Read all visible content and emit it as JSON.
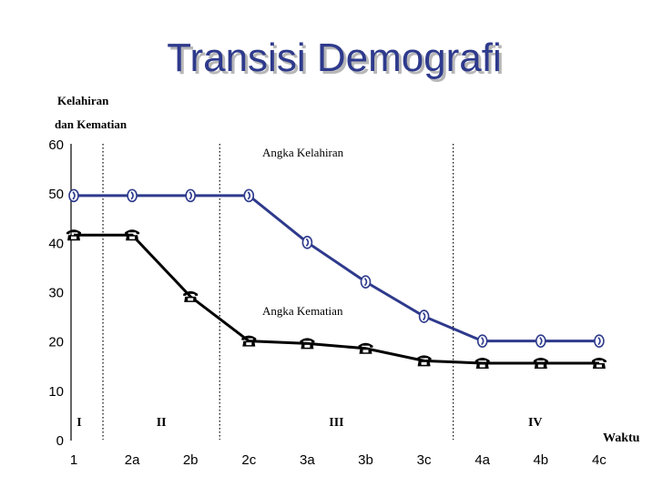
{
  "chart_data": {
    "type": "line",
    "title": "Transisi Demografi",
    "ylabel_line1": "Kelahiran",
    "ylabel_line2": "dan Kematian",
    "xlabel": "Waktu",
    "categories": [
      "1",
      "2a",
      "2b",
      "2c",
      "3a",
      "3b",
      "3c",
      "4a",
      "4b",
      "4c"
    ],
    "ylim": [
      0,
      60
    ],
    "yticks": [
      "0",
      "10",
      "20",
      "30",
      "40",
      "50",
      "60"
    ],
    "series": [
      {
        "name": "Angka Kelahiran",
        "color": "#2e3a8c",
        "marker": "birth-marker",
        "values": [
          49.5,
          49.5,
          49.5,
          49.5,
          40,
          32,
          25,
          20,
          20,
          20
        ]
      },
      {
        "name": "Angka Kematian",
        "color": "#000000",
        "marker": "telephone-marker",
        "values": [
          41.5,
          41.5,
          29,
          20,
          19.5,
          18.5,
          16,
          15.5,
          15.5,
          15.5
        ]
      }
    ],
    "phases": [
      "I",
      "II",
      "III",
      "IV"
    ],
    "phase_dividers_after_category": [
      "1",
      "2b",
      "3c"
    ],
    "grid": false
  }
}
